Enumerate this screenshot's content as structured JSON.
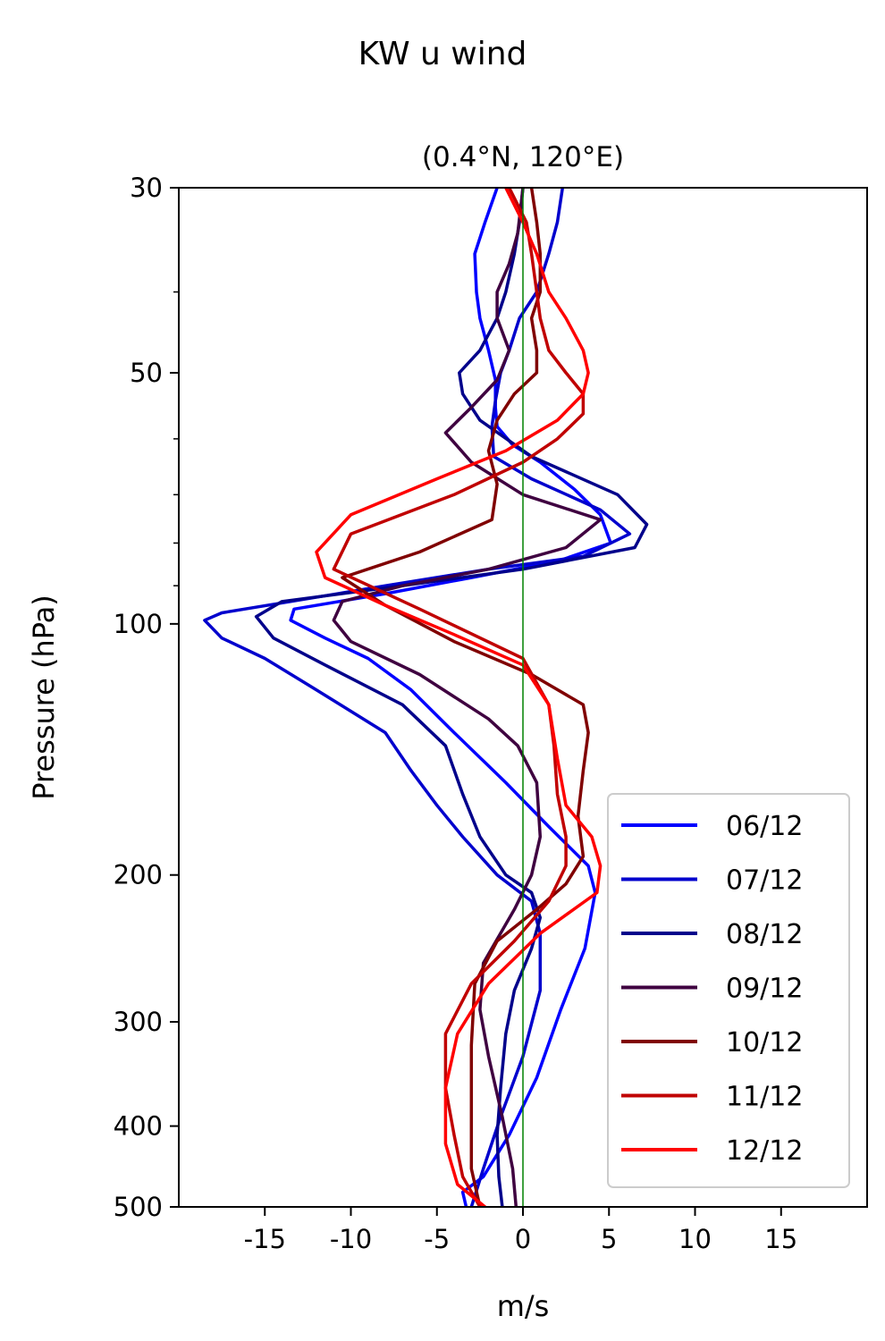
{
  "chart_data": {
    "type": "line",
    "title": "KW u wind",
    "subtitle": "(0.4°N, 120°E)",
    "xlabel": "m/s",
    "ylabel": "Pressure (hPa)",
    "xlim": [
      -20,
      20
    ],
    "ylim": [
      500,
      30
    ],
    "y_scale": "log",
    "x_ticks": [
      -15,
      -10,
      -5,
      0,
      5,
      10,
      15
    ],
    "x_tick_labels": [
      "-15",
      "-10",
      "-5",
      "0",
      "5",
      "10",
      "15"
    ],
    "y_ticks": [
      30,
      50,
      100,
      200,
      300,
      400,
      500
    ],
    "y_tick_labels": [
      "30",
      "50",
      "100",
      "200",
      "300",
      "400",
      "500"
    ],
    "grid": false,
    "zero_line_color": "#008000",
    "legend_position": "bottom-right",
    "series": [
      {
        "name": "06/12",
        "color": "#0000ff",
        "x": [
          -1.5,
          -2.2,
          -2.8,
          -2.7,
          -2.5,
          -2.0,
          -1.6,
          -1.6,
          -1.5,
          -0.6,
          1.0,
          3.0,
          4.5,
          5.1,
          2.1,
          -3.0,
          -8.0,
          -13.3,
          -13.5,
          -11.5,
          -9.0,
          -6.5,
          -4.0,
          -1.0,
          1.5,
          3.8,
          4.2,
          3.6,
          2.2,
          0.8,
          -0.8,
          -2.3,
          -3.5,
          -3.3
        ],
        "y": [
          30,
          33,
          36,
          40,
          43,
          47,
          51,
          55,
          58,
          61,
          64,
          69,
          74,
          80,
          84,
          88,
          92,
          96,
          99,
          104,
          110,
          120,
          135,
          155,
          175,
          195,
          210,
          245,
          290,
          350,
          410,
          460,
          480,
          500
        ]
      },
      {
        "name": "07/12",
        "color": "#0000cd",
        "x": [
          2.3,
          2.0,
          1.5,
          0.8,
          -0.2,
          -0.8,
          -1.3,
          -1.6,
          -1.8,
          -1.7,
          0.5,
          4.5,
          6.2,
          3.5,
          -2.0,
          -8.0,
          -13.5,
          -17.5,
          -18.5,
          -17.5,
          -15.0,
          -12.0,
          -8.0,
          -6.5,
          -5.0,
          -3.5,
          -1.5,
          0.5,
          1.0,
          1.0,
          0.0,
          -1.3,
          -2.3,
          -3.0
        ],
        "y": [
          30,
          33,
          36,
          40,
          43,
          47,
          50,
          54,
          58,
          63,
          67,
          73,
          78,
          83,
          86,
          90,
          94,
          97,
          99,
          104,
          110,
          120,
          135,
          150,
          165,
          180,
          200,
          215,
          235,
          275,
          330,
          390,
          450,
          500
        ]
      },
      {
        "name": "08/12",
        "color": "#00008b",
        "x": [
          0.0,
          -0.2,
          -0.5,
          -1.0,
          -1.5,
          -2.5,
          -3.7,
          -3.5,
          -2.5,
          0.5,
          5.5,
          7.2,
          6.5,
          0.0,
          -7.0,
          -14.0,
          -15.5,
          -14.5,
          -11.5,
          -7.0,
          -4.5,
          -3.5,
          -2.5,
          -1.0,
          0.5,
          1.0,
          0.5,
          -0.5,
          -1.0,
          -1.3,
          -1.5,
          -1.4,
          -1.2
        ],
        "y": [
          30,
          33,
          36,
          40,
          43,
          47,
          50,
          53,
          57,
          63,
          70,
          76,
          81,
          86,
          90,
          94,
          98,
          104,
          112,
          125,
          140,
          160,
          180,
          200,
          210,
          225,
          245,
          275,
          310,
          360,
          410,
          460,
          500
        ]
      },
      {
        "name": "09/12",
        "color": "#3f0040",
        "x": [
          0.0,
          -0.3,
          -0.8,
          -1.5,
          -1.5,
          -0.8,
          -1.5,
          -3.0,
          -4.5,
          -3.0,
          0.0,
          4.5,
          2.5,
          -2.0,
          -7.0,
          -10.5,
          -11.0,
          -10.0,
          -6.0,
          -2.0,
          -0.3,
          0.8,
          1.0,
          0.5,
          -0.5,
          -2.3,
          -2.5,
          -2.0,
          -1.2,
          -0.6,
          -0.4
        ],
        "y": [
          30,
          34,
          37,
          40,
          43,
          47,
          51,
          55,
          59,
          64,
          70,
          75,
          81,
          86,
          90,
          94,
          99,
          105,
          115,
          130,
          140,
          155,
          180,
          200,
          220,
          255,
          290,
          330,
          390,
          450,
          500
        ]
      },
      {
        "name": "10/12",
        "color": "#800000",
        "x": [
          0.5,
          0.8,
          1.0,
          1.0,
          0.5,
          0.8,
          0.8,
          -0.5,
          -1.5,
          -2.0,
          -1.5,
          -1.8,
          -6.0,
          -10.5,
          -8.0,
          -4.0,
          0.5,
          3.5,
          3.8,
          3.5,
          3.2,
          3.5,
          2.5,
          0.8,
          -1.5,
          -2.8,
          -3.0,
          -3.0,
          -3.0,
          -2.5
        ],
        "y": [
          30,
          33,
          36,
          40,
          43,
          47,
          50,
          53,
          57,
          62,
          68,
          75,
          82,
          88,
          95,
          105,
          115,
          125,
          135,
          150,
          170,
          190,
          205,
          220,
          240,
          270,
          320,
          380,
          450,
          500
        ]
      },
      {
        "name": "11/12",
        "color": "#c00000",
        "x": [
          -0.8,
          0.2,
          0.5,
          0.8,
          1.0,
          1.5,
          2.5,
          3.5,
          3.5,
          2.0,
          0.0,
          -4.0,
          -10.0,
          -11.0,
          -6.0,
          0.0,
          1.5,
          1.8,
          2.0,
          2.5,
          2.5,
          1.5,
          -0.5,
          -3.0,
          -4.5,
          -4.5,
          -4.0,
          -3.5,
          -2.5
        ],
        "y": [
          30,
          33,
          36,
          40,
          43,
          47,
          50,
          53,
          56,
          60,
          64,
          70,
          78,
          86,
          96,
          110,
          125,
          140,
          160,
          180,
          195,
          215,
          240,
          270,
          310,
          360,
          410,
          460,
          500
        ]
      },
      {
        "name": "12/12",
        "color": "#ff0000",
        "x": [
          -1.0,
          0.0,
          0.8,
          1.5,
          2.5,
          3.5,
          3.8,
          3.5,
          2.0,
          -1.0,
          -5.0,
          -10.0,
          -12.0,
          -11.5,
          -8.0,
          -4.0,
          0.0,
          1.5,
          2.0,
          2.5,
          4.0,
          4.5,
          4.3,
          1.0,
          -2.0,
          -3.8,
          -4.5,
          -4.5,
          -3.8,
          -2.2
        ],
        "y": [
          30,
          33,
          36,
          40,
          43,
          47,
          50,
          53,
          57,
          62,
          67,
          74,
          82,
          88,
          95,
          103,
          112,
          125,
          145,
          165,
          180,
          195,
          210,
          235,
          270,
          310,
          360,
          420,
          470,
          500
        ]
      }
    ]
  }
}
